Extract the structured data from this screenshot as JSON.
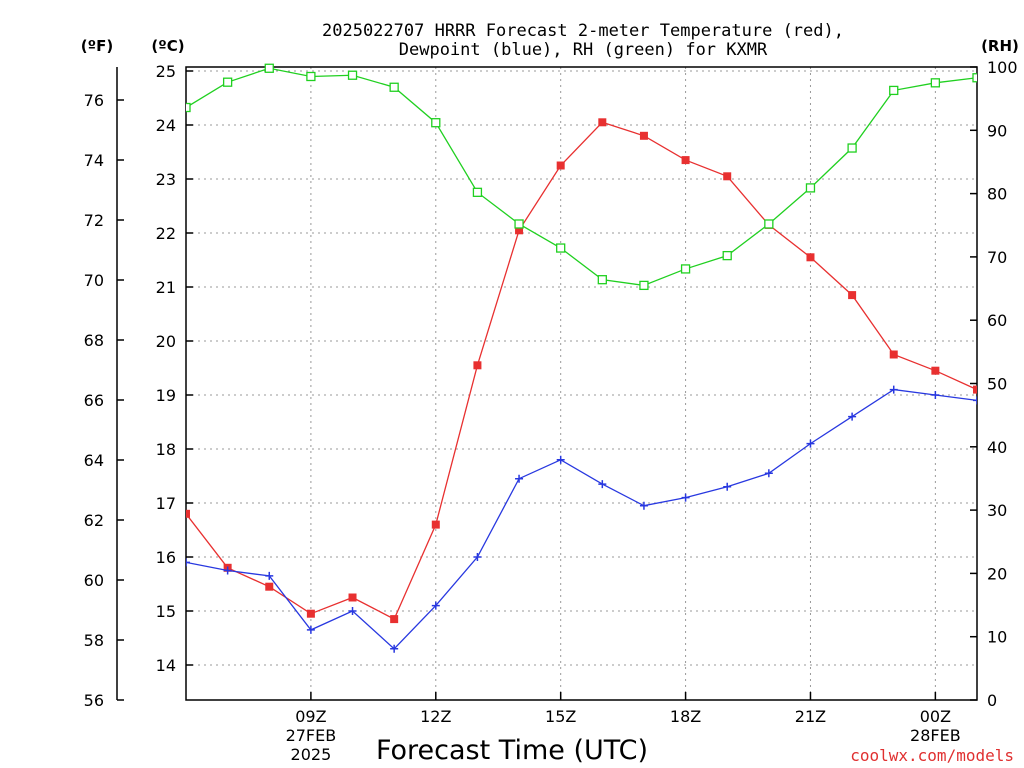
{
  "chart_data": {
    "type": "line",
    "title_line1": "2025022707 HRRR Forecast 2-meter Temperature (red),",
    "title_line2": "Dewpoint (blue), RH (green) for KXMR",
    "xlabel": "Forecast Time (UTC)",
    "credit": "coolwx.com/models",
    "unit_f": "(ºF)",
    "unit_c": "(ºC)",
    "unit_rh": "(RH)",
    "x_hours": [
      6,
      7,
      8,
      9,
      10,
      11,
      12,
      13,
      14,
      15,
      16,
      17,
      18,
      19,
      20,
      21,
      22,
      23,
      24,
      25
    ],
    "xlim": [
      6,
      25
    ],
    "x_ticks": [
      {
        "hour": 9,
        "label": "09Z",
        "sub1": "27FEB",
        "sub2": "2025"
      },
      {
        "hour": 12,
        "label": "12Z",
        "sub1": "",
        "sub2": ""
      },
      {
        "hour": 15,
        "label": "15Z",
        "sub1": "",
        "sub2": ""
      },
      {
        "hour": 18,
        "label": "18Z",
        "sub1": "",
        "sub2": ""
      },
      {
        "hour": 21,
        "label": "21Z",
        "sub1": "",
        "sub2": ""
      },
      {
        "hour": 24,
        "label": "00Z",
        "sub1": "28FEB",
        "sub2": ""
      }
    ],
    "c_axis": {
      "ylim": [
        13.4,
        25
      ],
      "ticks": [
        14,
        15,
        16,
        17,
        18,
        19,
        20,
        21,
        22,
        23,
        24,
        25
      ]
    },
    "f_axis": {
      "ylim": [
        56,
        77.3
      ],
      "ticks": [
        56,
        58,
        60,
        62,
        64,
        66,
        68,
        70,
        72,
        74,
        76
      ]
    },
    "rh_axis": {
      "ylim": [
        0,
        100
      ],
      "ticks": [
        0,
        10,
        20,
        30,
        40,
        50,
        60,
        70,
        80,
        90,
        100
      ]
    },
    "series": [
      {
        "axis": "c",
        "color": "#e83030",
        "marker": "filled-square",
        "values": [
          16.8,
          15.8,
          15.45,
          14.95,
          15.25,
          14.85,
          16.6,
          19.55,
          22.05,
          23.25,
          24.05,
          23.8,
          23.35,
          23.05,
          22.15,
          21.55,
          20.85,
          19.75,
          19.45,
          19.1
        ]
      },
      {
        "axis": "c",
        "color": "#2838e0",
        "marker": "plus",
        "values": [
          15.9,
          15.75,
          15.65,
          14.65,
          15.0,
          14.3,
          15.1,
          16.0,
          17.45,
          17.8,
          17.35,
          16.95,
          17.1,
          17.3,
          17.55,
          18.1,
          18.6,
          19.1,
          19.0,
          18.9
        ]
      },
      {
        "axis": "rh",
        "color": "#20d020",
        "marker": "open-square",
        "values": [
          93.6,
          97.6,
          99.8,
          98.5,
          98.7,
          96.8,
          91.2,
          80.2,
          75.2,
          71.4,
          66.4,
          65.5,
          68.1,
          70.2,
          75.2,
          80.9,
          87.2,
          96.3,
          97.5,
          98.3
        ]
      }
    ]
  }
}
